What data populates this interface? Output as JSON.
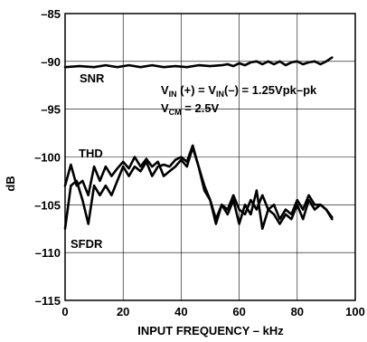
{
  "chart_data": {
    "type": "line",
    "xlabel": "INPUT FREQUENCY – kHz",
    "ylabel": "dB",
    "xlim": [
      0,
      100
    ],
    "ylim": [
      -115,
      -85
    ],
    "xticks": [
      0,
      20,
      40,
      60,
      80,
      100
    ],
    "yticks": [
      -85,
      -90,
      -95,
      -100,
      -105,
      -110,
      -115
    ],
    "xtick_labels": [
      "0",
      "20",
      "40",
      "60",
      "80",
      "100"
    ],
    "ytick_labels": [
      "–85",
      "–90",
      "–95",
      "–100",
      "–105",
      "–110",
      "–115"
    ],
    "grid": true,
    "annotations": {
      "vin_main": "V",
      "vin_sub1": "IN",
      "vin_mid": " (+) = V",
      "vin_sub2": "IN",
      "vin_end": "(–) = 1.25Vpk–pk",
      "vcm_main": "V",
      "vcm_sub": "CM",
      "vcm_end": " = 2.5V"
    },
    "series": [
      {
        "name": "SNR",
        "x": [
          0,
          5,
          10,
          14,
          18,
          22,
          26,
          30,
          34,
          38,
          42,
          46,
          50,
          54,
          56,
          58,
          60,
          62,
          64,
          66,
          68,
          70,
          72,
          74,
          76,
          78,
          80,
          82,
          84,
          86,
          88,
          90,
          92
        ],
        "y": [
          -90.6,
          -90.5,
          -90.6,
          -90.4,
          -90.6,
          -90.4,
          -90.6,
          -90.4,
          -90.6,
          -90.5,
          -90.6,
          -90.4,
          -90.5,
          -90.4,
          -90.3,
          -90.5,
          -90.2,
          -90.4,
          -90.1,
          -90.0,
          -90.3,
          -90.0,
          -90.3,
          -90.0,
          -90.4,
          -90.1,
          -90.0,
          -90.3,
          -90.1,
          -90.0,
          -90.3,
          -90.0,
          -89.6
        ]
      },
      {
        "name": "THD",
        "x": [
          0,
          2,
          4,
          6,
          8,
          10,
          12,
          14,
          16,
          18,
          20,
          22,
          24,
          26,
          28,
          30,
          32,
          34,
          36,
          38,
          40,
          42,
          44,
          46,
          48,
          50,
          52,
          54,
          56,
          58,
          60,
          62,
          64,
          66,
          68,
          70,
          72,
          74,
          76,
          78,
          80,
          82,
          84,
          86,
          88,
          90,
          92
        ],
        "y": [
          -103.0,
          -100.8,
          -103.0,
          -102.5,
          -104.0,
          -101.0,
          -102.5,
          -101.0,
          -102.0,
          -101.2,
          -100.5,
          -101.2,
          -100.0,
          -101.0,
          -100.2,
          -101.0,
          -100.5,
          -102.0,
          -101.5,
          -101.0,
          -100.3,
          -101.0,
          -99.0,
          -101.0,
          -103.0,
          -104.5,
          -107.0,
          -105.0,
          -105.5,
          -104.0,
          -105.5,
          -106.0,
          -104.5,
          -105.5,
          -104.0,
          -105.5,
          -105.0,
          -106.5,
          -105.5,
          -106.0,
          -104.5,
          -105.5,
          -104.0,
          -105.0,
          -105.0,
          -105.5,
          -106.3
        ]
      },
      {
        "name": "SFDR",
        "x": [
          0,
          2,
          4,
          6,
          8,
          10,
          12,
          14,
          16,
          18,
          20,
          22,
          24,
          26,
          28,
          30,
          32,
          34,
          36,
          38,
          40,
          42,
          44,
          46,
          48,
          50,
          52,
          54,
          56,
          58,
          60,
          62,
          64,
          66,
          68,
          70,
          72,
          74,
          76,
          78,
          80,
          82,
          84,
          86,
          88,
          90,
          92
        ],
        "y": [
          -107.5,
          -103.0,
          -102.5,
          -104.5,
          -107.0,
          -103.0,
          -104.0,
          -103.0,
          -104.0,
          -102.5,
          -101.0,
          -102.0,
          -101.0,
          -101.5,
          -100.5,
          -102.0,
          -101.0,
          -100.8,
          -101.0,
          -100.3,
          -100.0,
          -100.5,
          -98.8,
          -101.0,
          -103.5,
          -104.5,
          -106.5,
          -105.0,
          -106.0,
          -104.5,
          -107.0,
          -105.0,
          -106.0,
          -103.5,
          -107.5,
          -105.5,
          -106.0,
          -107.0,
          -106.0,
          -106.5,
          -105.0,
          -106.5,
          -104.5,
          -105.5,
          -105.0,
          -105.5,
          -106.5
        ]
      }
    ],
    "labels": {
      "snr": "SNR",
      "thd": "THD",
      "sfdr": "SFDR"
    }
  }
}
